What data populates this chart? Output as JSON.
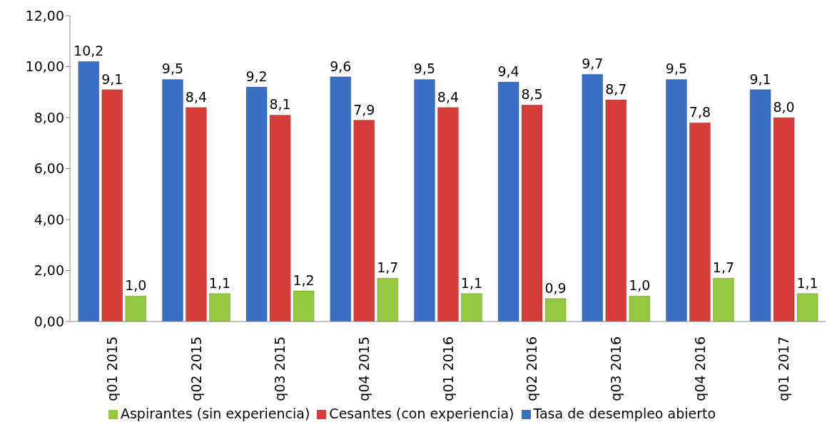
{
  "chart_data": {
    "type": "bar",
    "categories": [
      "q01 2015",
      "q02 2015",
      "q03 2015",
      "q04 2015",
      "q01 2016",
      "q02 2016",
      "q03 2016",
      "q04 2016",
      "q01 2017"
    ],
    "series": [
      {
        "name": "Tasa de desempleo abierto",
        "color": "#3a6fc6",
        "values": [
          10.2,
          9.5,
          9.2,
          9.6,
          9.5,
          9.4,
          9.7,
          9.5,
          9.1
        ],
        "value_labels": [
          "10,2",
          "9,5",
          "9,2",
          "9,6",
          "9,5",
          "9,4",
          "9,7",
          "9,5",
          "9,1"
        ]
      },
      {
        "name": "Cesantes (con experiencia)",
        "color": "#d63c3a",
        "values": [
          9.1,
          8.4,
          8.1,
          7.9,
          8.4,
          8.5,
          8.7,
          7.8,
          8.0
        ],
        "value_labels": [
          "9,1",
          "8,4",
          "8,1",
          "7,9",
          "8,4",
          "8,5",
          "8,7",
          "7,8",
          "8,0"
        ]
      },
      {
        "name": "Aspirantes (sin experiencia)",
        "color": "#94c83e",
        "values": [
          1.0,
          1.1,
          1.2,
          1.7,
          1.1,
          0.9,
          1.0,
          1.7,
          1.1
        ],
        "value_labels": [
          "1,0",
          "1,1",
          "1,2",
          "1,7",
          "1,1",
          "0,9",
          "1,0",
          "1,7",
          "1,1"
        ]
      }
    ],
    "ylim": [
      0,
      12
    ],
    "yticks": [
      {
        "value": 0,
        "label": "0,00"
      },
      {
        "value": 2,
        "label": "2,00"
      },
      {
        "value": 4,
        "label": "4,00"
      },
      {
        "value": 6,
        "label": "6,00"
      },
      {
        "value": 8,
        "label": "8,00"
      },
      {
        "value": 10,
        "label": "10,00"
      },
      {
        "value": 12,
        "label": "12,00"
      }
    ],
    "legend": "bottom"
  }
}
